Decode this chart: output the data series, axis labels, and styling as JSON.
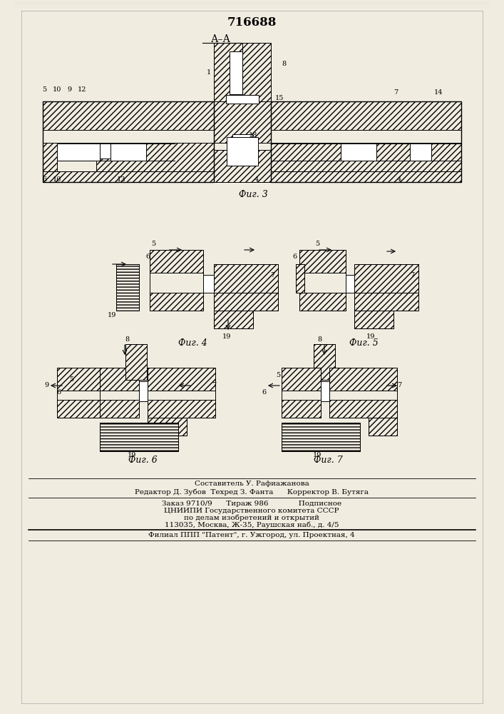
{
  "patent_number": "716688",
  "footer_lines": [
    "Составитель У. Рафиажанова",
    "Редактор Д. Зубов  Техред З. Фанта      Корректор В. Бутяга",
    "Заказ 9710/9      Тираж 986             Подписное",
    "ЦНИИПИ Государственного комитета СССР",
    "по делам изобретений и открытий",
    "113035, Москва, Ж-35, Раушская наб., д. 4/5",
    "Филиал ППП \"Патент\", г. Ужгород, ул. Проектная, 4"
  ],
  "bg_color": "#f0ece0",
  "hatch_density": "////",
  "horiz_hatch": "----"
}
